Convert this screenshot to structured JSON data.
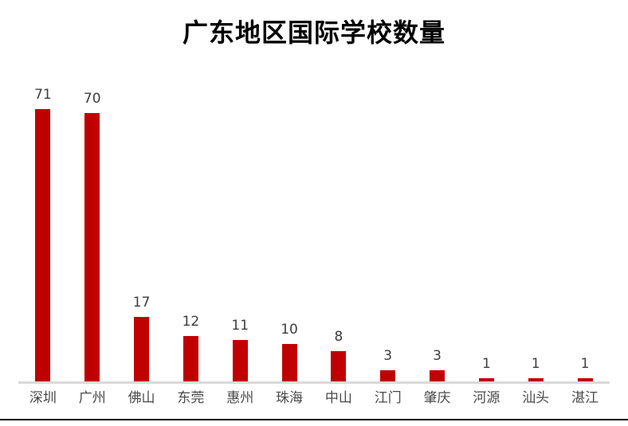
{
  "chart_data": {
    "type": "bar",
    "title": "广东地区国际学校数量",
    "categories": [
      "深圳",
      "广州",
      "佛山",
      "东莞",
      "惠州",
      "珠海",
      "中山",
      "江门",
      "肇庆",
      "河源",
      "汕头",
      "湛江"
    ],
    "values": [
      71,
      70,
      17,
      12,
      11,
      10,
      8,
      3,
      3,
      1,
      1,
      1
    ],
    "xlabel": "",
    "ylabel": "",
    "ylim": [
      0,
      78.6
    ],
    "grid": false,
    "legend": "none",
    "data_labels": "above-bars",
    "colors": {
      "bar": "#c00000",
      "axis_line": "#d9d9d9",
      "title_text": "#000000",
      "value_label_text": "#3d3d3d",
      "category_label_text": "#4a4a4a",
      "bottom_border": "#000000",
      "background": "#ffffff"
    }
  }
}
